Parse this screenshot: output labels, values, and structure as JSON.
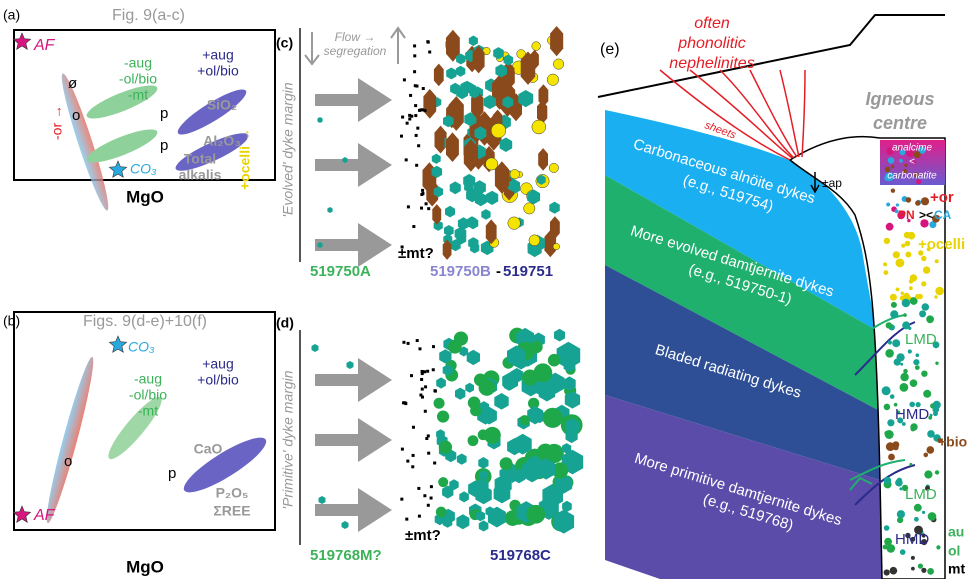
{
  "panel_a": {
    "label": "(a)",
    "caption": "Fig. 9(a-c)",
    "af": "AF",
    "co3": "CO₃",
    "minus": [
      "-aug",
      "-ol/bio",
      "-mt"
    ],
    "plus": [
      "+aug",
      "+ol/bio"
    ],
    "oxides": [
      "SiO₂",
      "Al₂O₃"
    ],
    "alkalis": [
      "Total",
      "alkalis"
    ],
    "points": [
      "ø",
      "o",
      "p",
      "p"
    ],
    "or_trend": "-or →",
    "ocelli_trend": "+ocelli →",
    "axis": "MgO"
  },
  "panel_b": {
    "label": "(b)",
    "caption": "Figs. 9(d-e)+10(f)",
    "co3": "CO₃",
    "minus": [
      "-aug",
      "-ol/bio",
      "-mt"
    ],
    "plus": [
      "+aug",
      "+ol/bio"
    ],
    "oxides": [
      "CaO",
      "P₂O₅",
      "ΣREE"
    ],
    "points": [
      "o",
      "p"
    ],
    "af": "AF",
    "axis": "MgO"
  },
  "panel_c": {
    "label": "(c)",
    "flow": [
      "Flow →",
      "segregation"
    ],
    "margin": "'Evolved' dyke margin",
    "sample_a": "519750A",
    "mt": "±mt?",
    "sample_b": "519750B",
    "dash": "-",
    "sample_c": "519751"
  },
  "panel_d": {
    "label": "(d)",
    "margin": "'Primitive' dyke margin",
    "sample_a": "519768M?",
    "mt": "±mt?",
    "sample_b": "519768C"
  },
  "panel_e": {
    "label": "(e)",
    "nephelinites": [
      "often",
      "phonolitic",
      "nephelinites"
    ],
    "centre": [
      "Igneous",
      "centre"
    ],
    "sheets": "sheets",
    "box": [
      "analcime",
      "<",
      "carbonatite"
    ],
    "ap": "±ap",
    "or": "+or",
    "pn": "PN",
    "vs": "><",
    "ca": "CA",
    "ocelli": "+ocelli",
    "dykes": [
      {
        "name": "Carbonaceous alnöite dykes",
        "example": "(e.g., 519754)"
      },
      {
        "name": "More evolved damtjernite dykes",
        "example": "(e.g., 519750-1)"
      },
      {
        "name": "Bladed radiating dykes"
      },
      {
        "name": "More primitive damtjernite dykes",
        "example": "(e.g., 519768)"
      }
    ],
    "lmd_1": "LMD",
    "hmd_1": "HMD",
    "bio": "+bio",
    "lmd_2": "LMD",
    "hmd_2": "HMD",
    "bottom": [
      "au",
      "ol",
      "mt"
    ]
  }
}
